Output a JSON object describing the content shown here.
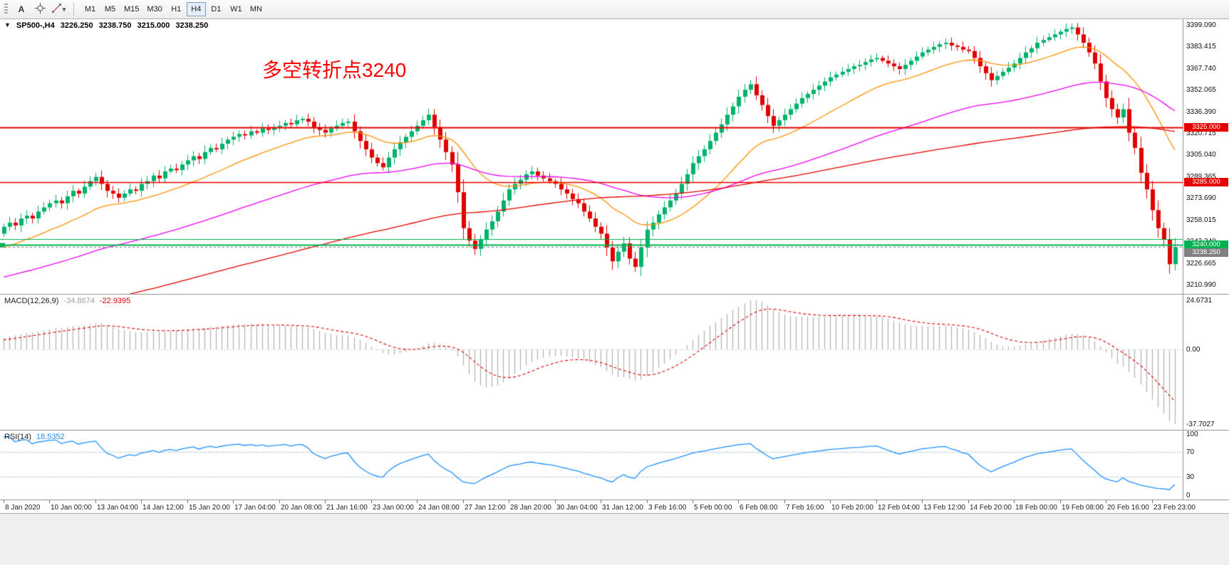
{
  "toolbar": {
    "cursor_label": "A",
    "timeframes": [
      "M1",
      "M5",
      "M15",
      "M30",
      "H1",
      "H4",
      "D1",
      "W1",
      "MN"
    ],
    "active_timeframe": "H4"
  },
  "chart_header": {
    "collapse": "▼",
    "symbol": "SP500-,H4",
    "open": "3226.250",
    "high": "3238.750",
    "low": "3215.000",
    "close": "3238.250"
  },
  "colors": {
    "up": "#00b26b",
    "down": "#e10000",
    "ma_fast": "#ff9100",
    "ma_mid": "#f000f0",
    "ma_slow": "#e60000",
    "macd_hist": "#b0b0b0",
    "macd_signal": "#dd0000",
    "rsi_line": "#1e90ff",
    "rsi_levels": "#9db4d0",
    "bid": "#808080",
    "hline_red": "#e60000",
    "hline_green": "#00b050"
  },
  "chart_data": {
    "type": "candlestick",
    "symbol": "SP500-",
    "timeframe": "H4",
    "annotation": {
      "text": "多空转折点3240",
      "color": "#ff0000"
    },
    "price_range": {
      "max": 3403.0,
      "min": 3204.5
    },
    "price_axis_labels": [
      "3399.090",
      "3383.415",
      "3367.740",
      "3352.065",
      "3336.390",
      "3320.715",
      "3305.040",
      "3289.365",
      "3273.690",
      "3258.015",
      "3242.340",
      "3226.665",
      "3210.990"
    ],
    "hlines": [
      {
        "price": 3325,
        "color": "#e60000",
        "width": 2,
        "tag": "3325.000"
      },
      {
        "price": 3285,
        "color": "#e60000",
        "width": 1.5,
        "tag": "3285.000"
      },
      {
        "price": 3240,
        "color": "#00b050",
        "width": 2,
        "tag": "3240.000",
        "edge_marker": true
      },
      {
        "price": 3244,
        "color": "#00b050",
        "width": 1
      }
    ],
    "ohlc_current": {
      "open": 3226.25,
      "high": 3238.75,
      "low": 3215.0,
      "close": 3238.25
    },
    "bid_tag": "3238.250",
    "first_open": 3248,
    "closes": [
      3253,
      3256,
      3254,
      3259,
      3261,
      3259,
      3264,
      3267,
      3270,
      3272,
      3270,
      3275,
      3279,
      3277,
      3282,
      3286,
      3289,
      3284,
      3279,
      3277,
      3274,
      3277,
      3280,
      3279,
      3284,
      3286,
      3290,
      3288,
      3293,
      3295,
      3294,
      3298,
      3301,
      3304,
      3302,
      3307,
      3310,
      3309,
      3313,
      3316,
      3318,
      3320,
      3319,
      3322,
      3321,
      3324,
      3323,
      3325,
      3326,
      3328,
      3327,
      3330,
      3331,
      3329,
      3325,
      3323,
      3321,
      3324,
      3326,
      3328,
      3329,
      3322,
      3315,
      3309,
      3303,
      3299,
      3296,
      3303,
      3309,
      3314,
      3318,
      3322,
      3326,
      3330,
      3334,
      3325,
      3316,
      3307,
      3298,
      3278,
      3252,
      3243,
      3237,
      3244,
      3251,
      3257,
      3264,
      3272,
      3280,
      3284,
      3287,
      3291,
      3293,
      3290,
      3288,
      3286,
      3284,
      3280,
      3277,
      3273,
      3270,
      3264,
      3259,
      3253,
      3248,
      3238,
      3228,
      3235,
      3241,
      3230,
      3224,
      3238,
      3251,
      3256,
      3262,
      3267,
      3272,
      3277,
      3284,
      3291,
      3299,
      3304,
      3309,
      3315,
      3321,
      3327,
      3334,
      3340,
      3347,
      3352,
      3356,
      3348,
      3341,
      3333,
      3326,
      3330,
      3334,
      3338,
      3342,
      3346,
      3349,
      3352,
      3355,
      3358,
      3361,
      3363,
      3365,
      3367,
      3369,
      3370,
      3372,
      3374,
      3375,
      3373,
      3371,
      3369,
      3367,
      3370,
      3373,
      3376,
      3379,
      3381,
      3383,
      3385,
      3386,
      3384,
      3383,
      3381,
      3380,
      3375,
      3369,
      3364,
      3359,
      3362,
      3365,
      3368,
      3371,
      3375,
      3379,
      3382,
      3386,
      3388,
      3390,
      3392,
      3394,
      3396,
      3397,
      3392,
      3386,
      3379,
      3371,
      3358,
      3346,
      3338,
      3332,
      3338,
      3321,
      3310,
      3292,
      3280,
      3265,
      3252,
      3244,
      3226,
      3238.25
    ],
    "time_labels": [
      "8 Jan 2020",
      "10 Jan 00:00",
      "13 Jan 04:00",
      "14 Jan 12:00",
      "15 Jan 20:00",
      "17 Jan 04:00",
      "20 Jan 08:00",
      "21 Jan 16:00",
      "23 Jan 00:00",
      "24 Jan 08:00",
      "27 Jan 12:00",
      "28 Jan 20:00",
      "30 Jan 04:00",
      "31 Jan 12:00",
      "3 Feb 16:00",
      "5 Feb 00:00",
      "6 Feb 08:00",
      "7 Feb 16:00",
      "10 Feb 20:00",
      "12 Feb 04:00",
      "13 Feb 12:00",
      "14 Feb 20:00",
      "18 Feb 00:00",
      "19 Feb 08:00",
      "20 Feb 16:00",
      "23 Feb 23:00"
    ],
    "indicators": {
      "macd": {
        "label": "MACD(12,26,9)",
        "value_str": "-34.8674",
        "signal_str": "-22.9395",
        "range": {
          "max": 24.6731,
          "min": -37.7027
        },
        "axis_labels": [
          "24.6731",
          "0.00",
          "-37.7027"
        ]
      },
      "rsi": {
        "label": "RSI(14)",
        "value_str": "18.5352",
        "levels": [
          70,
          30
        ],
        "axis_labels": [
          "100",
          "70",
          "30",
          "0"
        ]
      }
    }
  }
}
